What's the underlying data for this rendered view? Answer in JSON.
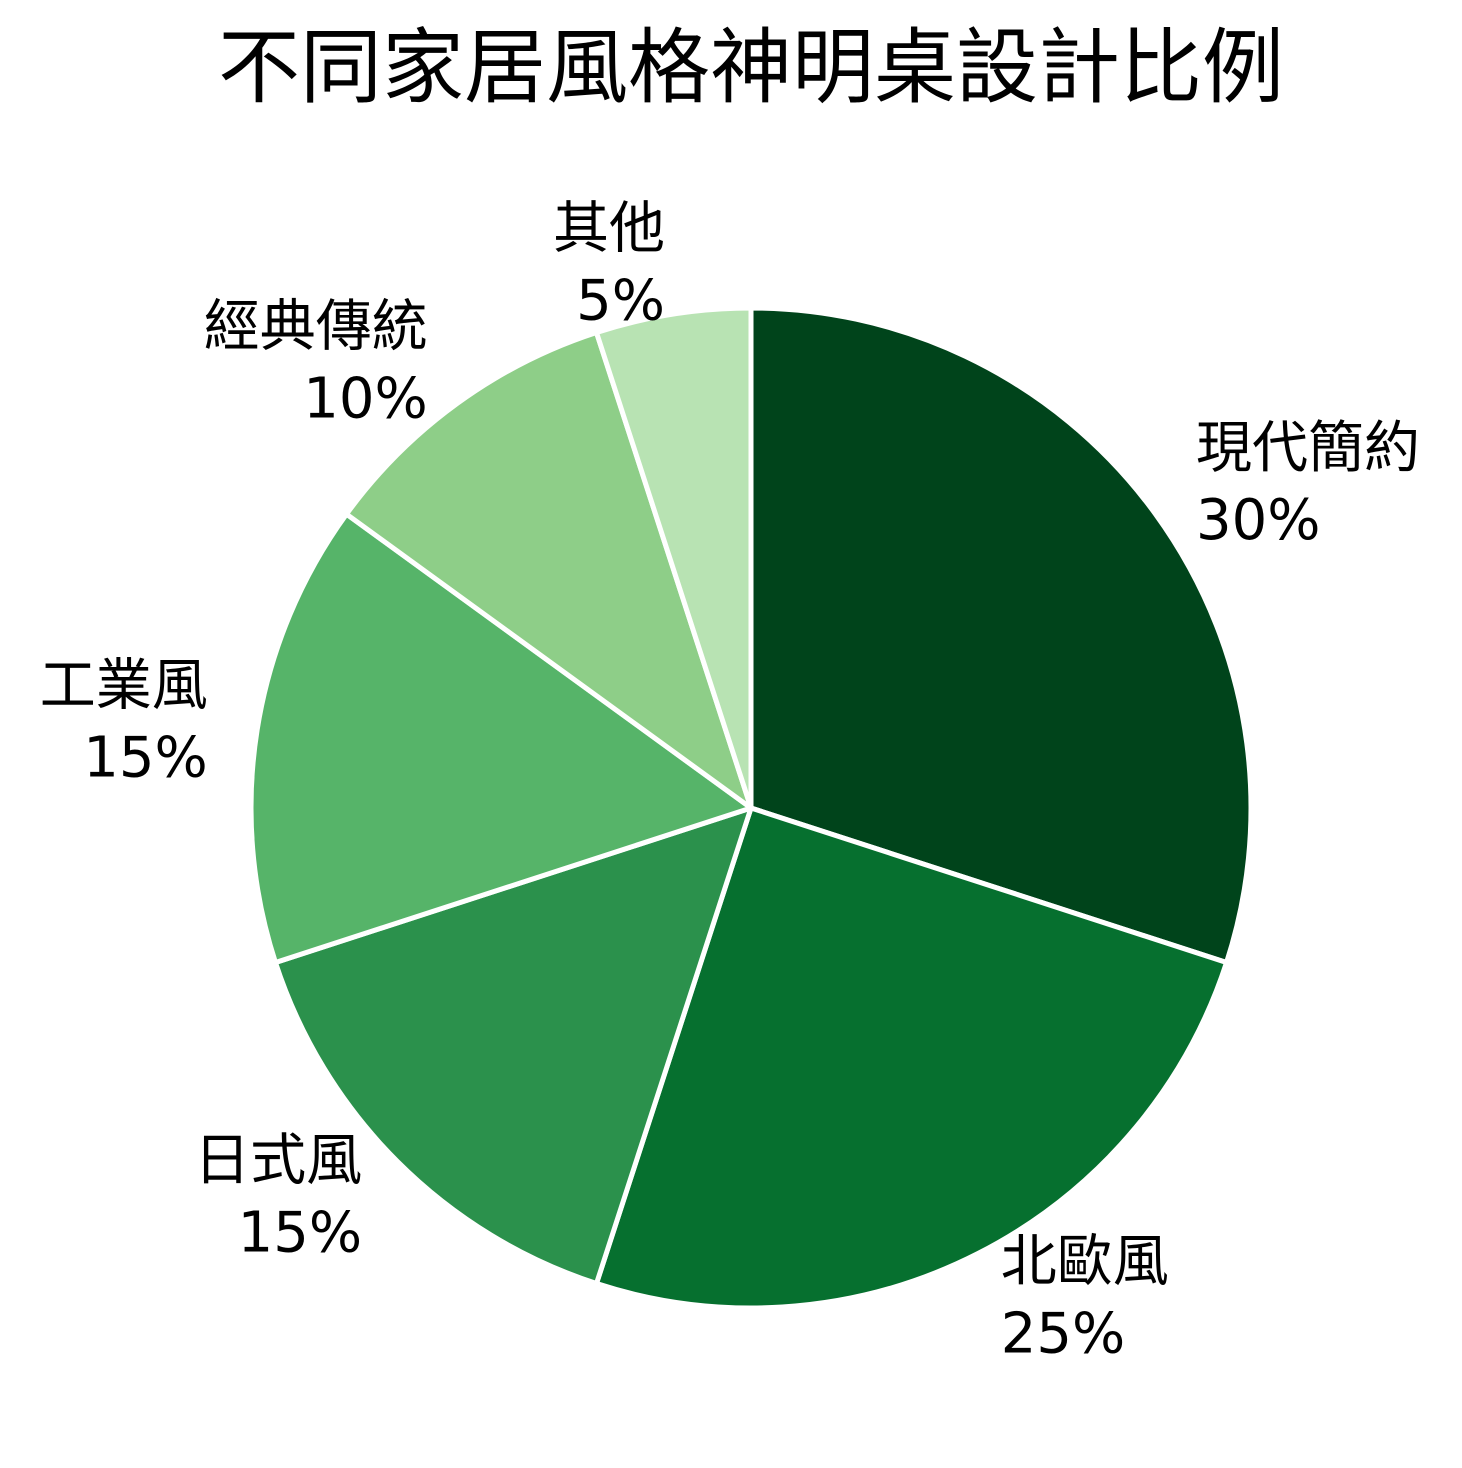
{
  "chart_data": {
    "type": "pie",
    "title": "不同家居風格神明桌設計比例",
    "categories": [
      "現代簡約",
      "北歐風",
      "日式風",
      "工業風",
      "經典傳統",
      "其他"
    ],
    "values": [
      30,
      25,
      15,
      15,
      10,
      5
    ],
    "value_labels": [
      "30%",
      "25%",
      "15%",
      "15%",
      "10%",
      "5%"
    ],
    "colors": [
      "#00441b",
      "#06702f",
      "#2b914c",
      "#56b469",
      "#8ece88",
      "#b8e3b3"
    ]
  }
}
